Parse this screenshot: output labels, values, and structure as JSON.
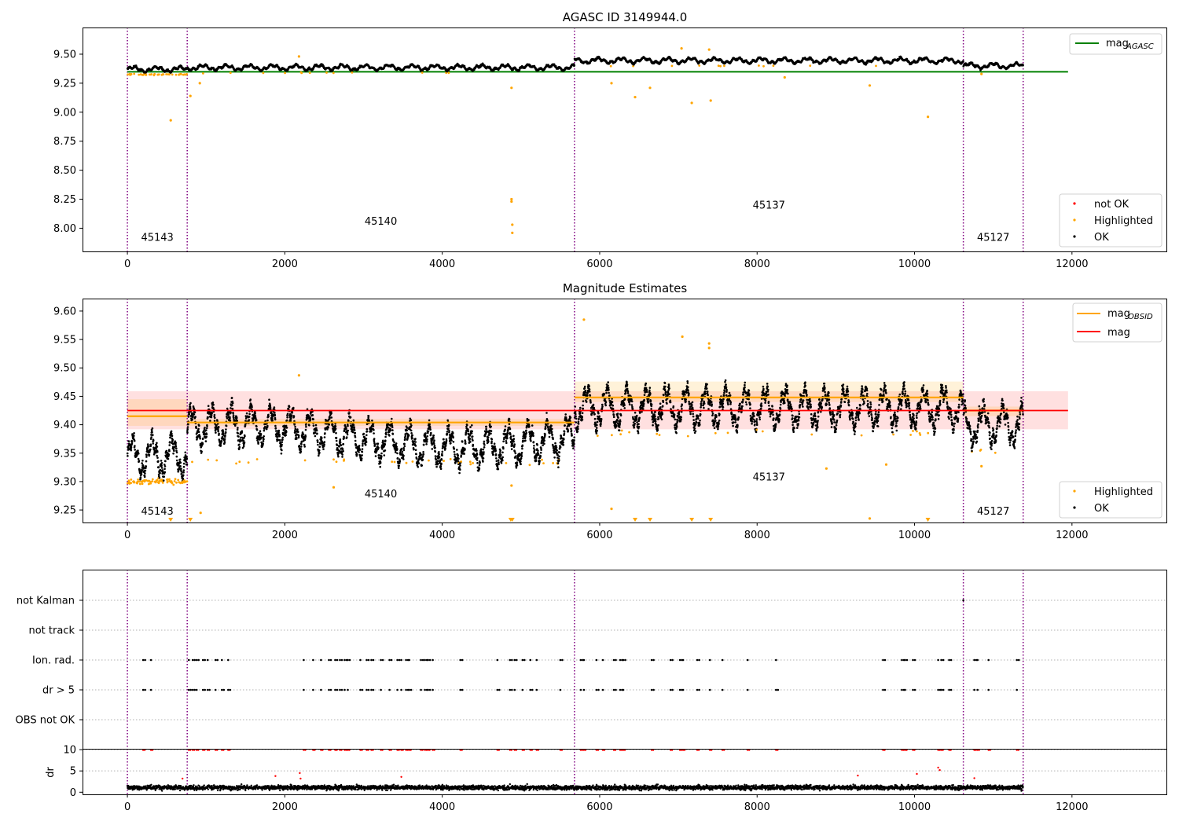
{
  "chart_data": [
    {
      "id": "agasc",
      "type": "scatter",
      "title": "AGASC ID 3149944.0",
      "xlim": [
        -570,
        13200
      ],
      "ylim": [
        7.8,
        9.73
      ],
      "x_ticks": [
        0,
        2000,
        4000,
        6000,
        8000,
        10000,
        12000
      ],
      "x_tick_labels": [
        "0",
        "2000",
        "4000",
        "6000",
        "8000",
        "10000",
        "12000"
      ],
      "y_ticks": [
        8.0,
        8.25,
        8.5,
        8.75,
        9.0,
        9.25,
        9.5
      ],
      "y_tick_labels": [
        "8.00",
        "8.25",
        "8.50",
        "8.75",
        "9.00",
        "9.25",
        "9.50"
      ],
      "obs_boundaries": [
        0,
        760,
        5680,
        10620,
        11380
      ],
      "obs_labels": [
        {
          "text": "45143",
          "x": 380,
          "y": 7.89
        },
        {
          "text": "45140",
          "x": 3220,
          "y": 8.03
        },
        {
          "text": "45137",
          "x": 8150,
          "y": 8.17
        },
        {
          "text": "45127",
          "x": 11000,
          "y": 7.89
        }
      ],
      "mag_agasc": 9.348,
      "mag_agasc_xrange": [
        0,
        11950
      ],
      "segment_baselines": [
        {
          "x": [
            0,
            760
          ],
          "level": 9.37
        },
        {
          "x": [
            760,
            5680
          ],
          "level": 9.385
        },
        {
          "x": [
            5680,
            10620
          ],
          "level": 9.445
        },
        {
          "x": [
            10620,
            11380
          ],
          "level": 9.4
        }
      ],
      "highlighted_outliers": [
        {
          "x": 550,
          "y": 8.93
        },
        {
          "x": 800,
          "y": 9.14
        },
        {
          "x": 920,
          "y": 9.25
        },
        {
          "x": 2180,
          "y": 9.48
        },
        {
          "x": 4880,
          "y": 9.21
        },
        {
          "x": 4880,
          "y": 8.25
        },
        {
          "x": 4880,
          "y": 8.23
        },
        {
          "x": 4890,
          "y": 8.03
        },
        {
          "x": 4890,
          "y": 7.96
        },
        {
          "x": 6150,
          "y": 9.25
        },
        {
          "x": 6450,
          "y": 9.13
        },
        {
          "x": 6640,
          "y": 9.21
        },
        {
          "x": 7040,
          "y": 9.55
        },
        {
          "x": 7170,
          "y": 9.08
        },
        {
          "x": 7390,
          "y": 9.54
        },
        {
          "x": 7410,
          "y": 9.1
        },
        {
          "x": 8350,
          "y": 9.3
        },
        {
          "x": 9430,
          "y": 9.23
        },
        {
          "x": 10170,
          "y": 8.96
        },
        {
          "x": 10850,
          "y": 9.33
        }
      ],
      "legend_upper": [
        {
          "label": "mag",
          "sub": "AGASC",
          "color": "#008000"
        }
      ],
      "legend_lower": [
        {
          "label": "not OK",
          "color": "#ff0000"
        },
        {
          "label": "Highlighted",
          "color": "#ffa500"
        },
        {
          "label": "OK",
          "color": "#000000"
        }
      ]
    },
    {
      "id": "estimates",
      "type": "scatter",
      "title": "Magnitude Estimates",
      "xlim": [
        -570,
        13200
      ],
      "ylim": [
        9.228,
        9.622
      ],
      "x_ticks": [
        0,
        2000,
        4000,
        6000,
        8000,
        10000,
        12000
      ],
      "x_tick_labels": [
        "0",
        "2000",
        "4000",
        "6000",
        "8000",
        "10000",
        "12000"
      ],
      "y_ticks": [
        9.25,
        9.3,
        9.35,
        9.4,
        9.45,
        9.5,
        9.55,
        9.6
      ],
      "y_tick_labels": [
        "9.25",
        "9.30",
        "9.35",
        "9.40",
        "9.45",
        "9.50",
        "9.55",
        "9.60"
      ],
      "obs_boundaries": [
        0,
        760,
        5680,
        10620,
        11380
      ],
      "obs_labels": [
        {
          "text": "45143",
          "x": 380,
          "y": 9.242
        },
        {
          "text": "45140",
          "x": 3220,
          "y": 9.272
        },
        {
          "text": "45137",
          "x": 8150,
          "y": 9.302
        },
        {
          "text": "45127",
          "x": 11000,
          "y": 9.242
        }
      ],
      "mag": 9.425,
      "mag_band": [
        9.392,
        9.459
      ],
      "mag_xrange": [
        0,
        11950
      ],
      "mag_obsid": [
        {
          "x": [
            0,
            760
          ],
          "value": 9.415,
          "band": [
            9.398,
            9.445
          ]
        },
        {
          "x": [
            760,
            5680
          ],
          "value": 9.404,
          "band": [
            9.398,
            9.41
          ]
        },
        {
          "x": [
            5680,
            10620
          ],
          "value": 9.448,
          "band": [
            9.44,
            9.476
          ]
        },
        {
          "x": [
            10620,
            11380
          ],
          "value": 9.425,
          "band": [
            9.415,
            9.432
          ]
        }
      ],
      "segment_baselines": [
        {
          "x": [
            0,
            760
          ],
          "level": 9.345
        },
        {
          "x": [
            760,
            5680
          ],
          "level": 9.38
        },
        {
          "x": [
            5680,
            10620
          ],
          "level": 9.43
        },
        {
          "x": [
            10620,
            11380
          ],
          "level": 9.4
        }
      ],
      "highlighted_outliers": [
        {
          "x": 2180,
          "y": 9.487
        },
        {
          "x": 2620,
          "y": 9.29
        },
        {
          "x": 4880,
          "y": 9.293
        },
        {
          "x": 5800,
          "y": 9.585
        },
        {
          "x": 6150,
          "y": 9.252
        },
        {
          "x": 7050,
          "y": 9.555
        },
        {
          "x": 7390,
          "y": 9.543
        },
        {
          "x": 7390,
          "y": 9.535
        },
        {
          "x": 8880,
          "y": 9.323
        },
        {
          "x": 9430,
          "y": 9.235
        },
        {
          "x": 9640,
          "y": 9.33
        },
        {
          "x": 10850,
          "y": 9.327
        },
        {
          "x": 930,
          "y": 9.245
        }
      ],
      "offscale_markers_x": [
        550,
        800,
        4870,
        4890,
        6450,
        6640,
        7170,
        7410,
        10170
      ],
      "legend_upper": [
        {
          "label": "mag",
          "sub": "OBSID",
          "color": "#ffa500"
        },
        {
          "label": "mag",
          "sub": "",
          "color": "#ff0000"
        }
      ],
      "legend_lower": [
        {
          "label": "Highlighted",
          "color": "#ffa500"
        },
        {
          "label": "OK",
          "color": "#000000"
        }
      ]
    },
    {
      "id": "flags",
      "type": "scatter",
      "xlim": [
        -570,
        13200
      ],
      "categories": [
        "not Kalman",
        "not track",
        "Ion. rad.",
        "dr > 5",
        "OBS not OK"
      ],
      "obs_boundaries": [
        0,
        760,
        5680,
        10620,
        11380
      ],
      "flag_times": [
        200,
        300,
        780,
        830,
        880,
        960,
        1020,
        1120,
        1200,
        1280,
        2240,
        2360,
        2460,
        2560,
        2640,
        2700,
        2760,
        2800,
        2960,
        3040,
        3100,
        3220,
        3330,
        3430,
        3480,
        3540,
        3580,
        3730,
        3780,
        3820,
        3880,
        4230,
        4700,
        4860,
        4920,
        5020,
        5120,
        5200,
        5500,
        5760,
        5800,
        5960,
        6040,
        6180,
        6260,
        6300,
        6660,
        6900,
        7020,
        7060,
        7240,
        7400,
        7560,
        7880,
        8240,
        9600,
        9840,
        9880,
        9980,
        10300,
        10340,
        10440,
        10760,
        10800,
        10940,
        11300
      ],
      "not_kalman_times": [
        10620
      ]
    },
    {
      "id": "dr",
      "type": "scatter",
      "xlim": [
        -570,
        13200
      ],
      "ylim": [
        -0.5,
        10.2
      ],
      "ylabel": "dr",
      "y_ticks": [
        0,
        5,
        10
      ],
      "y_tick_labels": [
        "0",
        "5",
        "10"
      ],
      "x_ticks": [
        0,
        2000,
        4000,
        6000,
        8000,
        10000,
        12000
      ],
      "x_tick_labels": [
        "0",
        "2000",
        "4000",
        "6000",
        "8000",
        "10000",
        "12000"
      ],
      "obs_boundaries": [
        0,
        760,
        5680,
        10620,
        11380
      ],
      "dr_outliers": [
        {
          "x": 700,
          "y": 3.2
        },
        {
          "x": 1880,
          "y": 3.8
        },
        {
          "x": 2190,
          "y": 4.5
        },
        {
          "x": 2200,
          "y": 3.2
        },
        {
          "x": 3480,
          "y": 3.6
        },
        {
          "x": 9280,
          "y": 3.9
        },
        {
          "x": 10030,
          "y": 4.3
        },
        {
          "x": 10300,
          "y": 5.8
        },
        {
          "x": 10320,
          "y": 5.2
        },
        {
          "x": 10760,
          "y": 3.3
        }
      ]
    }
  ]
}
